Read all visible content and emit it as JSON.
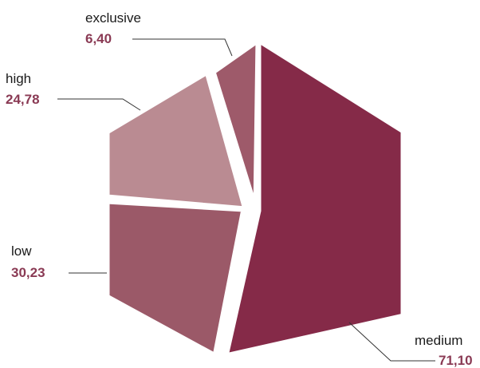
{
  "chart_data": {
    "type": "pie",
    "shape": "hexagon",
    "title": "",
    "categories": [
      "exclusive",
      "medium",
      "low",
      "high"
    ],
    "values": [
      6.4,
      71.1,
      30.23,
      24.78
    ],
    "value_labels": [
      "6,40",
      "71,10",
      "30,23",
      "24,78"
    ],
    "colors": [
      "#9e5a6a",
      "#852a48",
      "#9b5968",
      "#ba8b92"
    ],
    "value_label_color": "#8a3a54",
    "legend": "none"
  }
}
